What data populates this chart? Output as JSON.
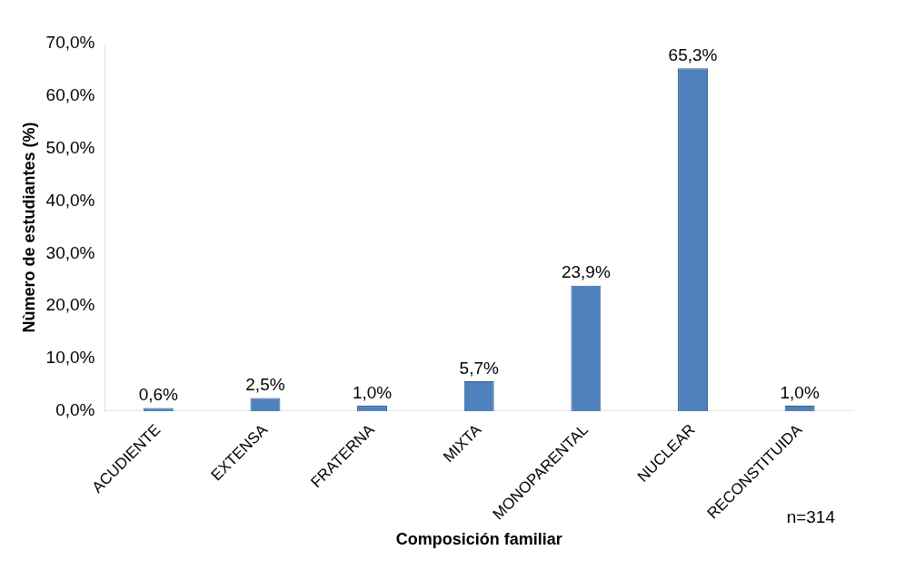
{
  "chart_data": {
    "type": "bar",
    "xlabel": "Composición familiar",
    "ylabel": "Nùmero de estudiantes (%)",
    "categories": [
      "ACUDIENTE",
      "EXTENSA",
      "FRATERNA",
      "MIXTA",
      "MONOPARENTAL",
      "NUCLEAR",
      "RECONSTITUIDA"
    ],
    "values": [
      0.6,
      2.5,
      1.0,
      5.7,
      23.9,
      65.3,
      1.0
    ],
    "value_labels": [
      "0,6%",
      "2,5%",
      "1,0%",
      "5,7%",
      "23,9%",
      "65,3%",
      "1,0%"
    ],
    "color": "#4f81bd",
    "ylim": [
      0,
      70
    ],
    "yticks": [
      {
        "value": 0,
        "label": "0,0%"
      },
      {
        "value": 10,
        "label": "10,0%"
      },
      {
        "value": 20,
        "label": "20,0%"
      },
      {
        "value": 30,
        "label": "30,0%"
      },
      {
        "value": 40,
        "label": "40,0%"
      },
      {
        "value": 50,
        "label": "50,0%"
      },
      {
        "value": 60,
        "label": "60,0%"
      },
      {
        "value": 70,
        "label": "70,0%"
      }
    ],
    "annotations": [
      "n=314"
    ],
    "grid": false,
    "legend": false
  }
}
